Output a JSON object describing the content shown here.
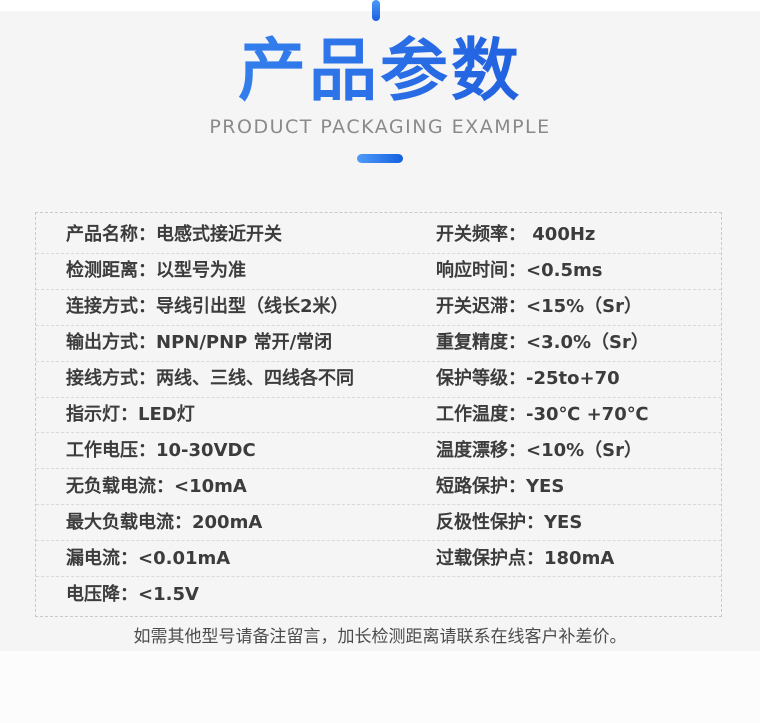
{
  "header": {
    "title": "产品参数",
    "subtitle": "PRODUCT PACKAGING EXAMPLE"
  },
  "colors": {
    "accent_light": "#4a9bf8",
    "accent_dark": "#1b5fe0",
    "title_gradient_start": "#3e90f5",
    "title_gradient_end": "#1750d8",
    "section_background": "#f5f5f5",
    "spec_text": "#3c3c3c",
    "subtitle_text": "#8a8a8a"
  },
  "specs": {
    "left": [
      {
        "label": "产品名称：",
        "value": "电感式接近开关"
      },
      {
        "label": "检测距离：",
        "value": "以型号为准"
      },
      {
        "label": "连接方式：",
        "value": "导线引出型（线长2米）"
      },
      {
        "label": "输出方式：",
        "value": "NPN/PNP 常开/常闭"
      },
      {
        "label": "接线方式：",
        "value": "两线、三线、四线各不同"
      },
      {
        "label": "指示灯：",
        "value": "LED灯"
      },
      {
        "label": "工作电压：",
        "value": "10-30VDC"
      },
      {
        "label": "无负载电流：",
        "value": "<10mA"
      },
      {
        "label": "最大负载电流：",
        "value": "200mA"
      },
      {
        "label": "漏电流：",
        "value": "<0.01mA"
      },
      {
        "label": "电压降：",
        "value": "<1.5V"
      }
    ],
    "right": [
      {
        "label": "开关频率：",
        "value": " 400Hz"
      },
      {
        "label": "响应时间：",
        "value": "<0.5ms"
      },
      {
        "label": "开关迟滞：",
        "value": "<15%（Sr）"
      },
      {
        "label": "重复精度：",
        "value": "<3.0%（Sr）"
      },
      {
        "label": "保护等级：",
        "value": "-25to+70"
      },
      {
        "label": "工作温度：",
        "value": "-30℃ +70℃"
      },
      {
        "label": "温度漂移：",
        "value": "<10%（Sr）"
      },
      {
        "label": "短路保护：",
        "value": "YES"
      },
      {
        "label": "反极性保护：",
        "value": "YES"
      },
      {
        "label": "过载保护点：",
        "value": "180mA"
      }
    ]
  },
  "footer": {
    "note": "如需其他型号请备注留言，加长检测距离请联系在线客户补差价。"
  }
}
